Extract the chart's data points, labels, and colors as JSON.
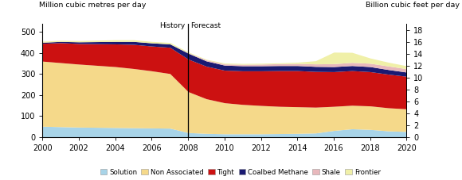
{
  "years": [
    2000,
    2001,
    2002,
    2003,
    2004,
    2005,
    2006,
    2007,
    2008,
    2009,
    2010,
    2011,
    2012,
    2013,
    2014,
    2015,
    2016,
    2017,
    2018,
    2019,
    2020
  ],
  "solution": [
    50,
    48,
    46,
    45,
    44,
    43,
    42,
    41,
    20,
    16,
    14,
    14,
    14,
    15,
    16,
    18,
    30,
    38,
    35,
    28,
    25
  ],
  "non_associated": [
    310,
    305,
    300,
    295,
    290,
    282,
    272,
    260,
    195,
    165,
    148,
    140,
    135,
    130,
    127,
    123,
    115,
    112,
    112,
    110,
    108
  ],
  "tight": [
    85,
    95,
    98,
    103,
    108,
    115,
    118,
    125,
    155,
    155,
    155,
    160,
    165,
    170,
    172,
    170,
    165,
    165,
    163,
    160,
    155
  ],
  "coalbed_methane": [
    5,
    6,
    8,
    10,
    12,
    14,
    15,
    16,
    28,
    25,
    24,
    24,
    24,
    24,
    24,
    24,
    24,
    24,
    24,
    22,
    20
  ],
  "shale": [
    0,
    0,
    0,
    0,
    0,
    0,
    0,
    0,
    2,
    5,
    6,
    7,
    8,
    9,
    10,
    12,
    14,
    15,
    16,
    17,
    16
  ],
  "frontier": [
    5,
    5,
    6,
    7,
    8,
    8,
    7,
    7,
    4,
    3,
    4,
    4,
    4,
    4,
    6,
    15,
    55,
    48,
    25,
    18,
    14
  ],
  "colors": {
    "solution": "#a8d4e8",
    "non_associated": "#f5d98a",
    "tight": "#cc1111",
    "coalbed_methane": "#1a1a72",
    "shale": "#e8b8bc",
    "frontier": "#f0f0a8"
  },
  "ylabel_left": "Million cubic metres per day",
  "ylabel_right": "Billion cubic feet per day",
  "ylim_left": [
    0,
    540
  ],
  "ylim_right": [
    0,
    19.09
  ],
  "yticks_left": [
    0,
    100,
    200,
    300,
    400,
    500
  ],
  "yticks_right": [
    0,
    2,
    4,
    6,
    8,
    10,
    12,
    14,
    16,
    18
  ],
  "xticks": [
    2000,
    2002,
    2004,
    2006,
    2008,
    2010,
    2012,
    2014,
    2016,
    2018,
    2020
  ],
  "history_year": 2008,
  "history_label": "History",
  "forecast_label": "Forecast",
  "legend_labels": [
    "Solution",
    "Non Associated",
    "Tight",
    "Coalbed Methane",
    "Shale",
    "Frontier"
  ],
  "legend_colors": [
    "#a8d4e8",
    "#f5d98a",
    "#cc1111",
    "#1a1a72",
    "#e8b8bc",
    "#f0f0a8"
  ]
}
